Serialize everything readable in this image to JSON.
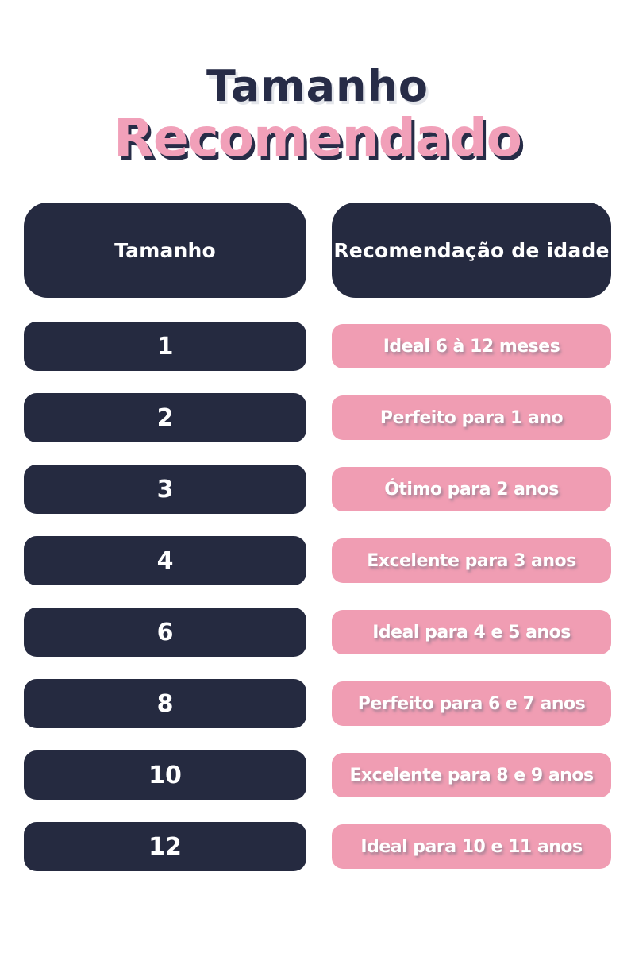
{
  "title": {
    "line1": "Tamanho",
    "line2": "Recomendado"
  },
  "colors": {
    "navy": "#252a40",
    "pink": "#f09db3",
    "title_navy": "#272c47",
    "title_pink": "#f1a0b9",
    "text_on_bars": "#ffffff",
    "background": "#ffffff"
  },
  "table": {
    "headers": [
      {
        "label": "Tamanho"
      },
      {
        "label": "Recomendação de idade"
      }
    ],
    "rows": [
      {
        "size": "1",
        "recommendation": "Ideal 6 à 12 meses"
      },
      {
        "size": "2",
        "recommendation": "Perfeito para 1 ano"
      },
      {
        "size": "3",
        "recommendation": "Ótimo para 2 anos"
      },
      {
        "size": "4",
        "recommendation": "Excelente para 3 anos"
      },
      {
        "size": "6",
        "recommendation": "Ideal para 4 e 5 anos"
      },
      {
        "size": "8",
        "recommendation": "Perfeito para 6 e 7 anos"
      },
      {
        "size": "10",
        "recommendation": "Excelente para 8 e 9 anos"
      },
      {
        "size": "12",
        "recommendation": "Ideal para 10 e 11 anos"
      }
    ]
  },
  "chart_data": {
    "type": "table",
    "title": "Tamanho Recomendado",
    "columns": [
      "Tamanho",
      "Recomendação de idade"
    ],
    "rows": [
      [
        "1",
        "Ideal 6 à 12 meses"
      ],
      [
        "2",
        "Perfeito para 1 ano"
      ],
      [
        "3",
        "Ótimo para 2 anos"
      ],
      [
        "4",
        "Excelente para 3 anos"
      ],
      [
        "6",
        "Ideal para 4 e 5 anos"
      ],
      [
        "8",
        "Perfeito para 6 e 7 anos"
      ],
      [
        "10",
        "Excelente para 8 e 9 anos"
      ],
      [
        "12",
        "Ideal para 10 e 11 anos"
      ]
    ]
  }
}
